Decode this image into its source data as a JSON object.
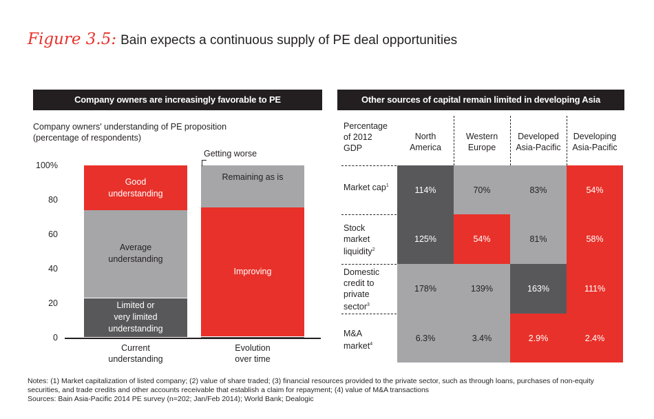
{
  "figure": {
    "label": "Figure 3.5:",
    "title": "Bain expects a continuous supply of PE deal opportunities"
  },
  "left_panel": {
    "banner": "Company owners are increasingly favorable to PE",
    "ytitle_line1": "Company owners' understanding of PE proposition",
    "ytitle_line2": "(percentage of respondents)",
    "annotation": "Getting worse"
  },
  "right_panel": {
    "banner": "Other sources of capital remain limited in developing Asia",
    "corner": [
      "Percentage",
      "of 2012",
      "GDP"
    ],
    "columns": [
      {
        "line1": "North",
        "line2": "America"
      },
      {
        "line1": "Western",
        "line2": "Europe"
      },
      {
        "line1": "Developed",
        "line2": "Asia-Pacific"
      },
      {
        "line1": "Developing",
        "line2": "Asia-Pacific"
      }
    ],
    "rows": [
      {
        "label": [
          "Market cap"
        ],
        "note": "1",
        "values": [
          "114%",
          "70%",
          "83%",
          "54%"
        ]
      },
      {
        "label": [
          "Stock",
          "market",
          "liquidity"
        ],
        "note": "2",
        "values": [
          "125%",
          "54%",
          "81%",
          "58%"
        ]
      },
      {
        "label": [
          "Domestic",
          "credit to",
          "private",
          "sector"
        ],
        "note": "3",
        "values": [
          "178%",
          "139%",
          "163%",
          "111%"
        ]
      },
      {
        "label": [
          "M&A",
          "market"
        ],
        "note": "4",
        "values": [
          "6.3%",
          "3.4%",
          "2.9%",
          "2.4%"
        ]
      }
    ],
    "colors": {
      "dark": "#58585a",
      "grey": "#a6a6a8",
      "red": "#e8312a"
    }
  },
  "chart_data": [
    {
      "type": "bar",
      "stacked": true,
      "title": "Company owners are increasingly favorable to PE",
      "ylabel": "Company owners' understanding of PE proposition (percentage of respondents)",
      "categories": [
        "Current understanding",
        "Evolution over time"
      ],
      "category_lines": [
        [
          "Current",
          "understanding"
        ],
        [
          "Evolution",
          "over time"
        ]
      ],
      "yticks": [
        "100%",
        "80",
        "60",
        "40",
        "20",
        "0"
      ],
      "ylim": [
        0,
        100
      ],
      "series": [
        {
          "name": "Limited or very limited understanding / Getting worse",
          "color": "#58585a",
          "values": [
            23,
            0.5
          ]
        },
        {
          "name": "Average understanding / Improving",
          "values": [
            51,
            75
          ],
          "colors": [
            "#a6a6a8",
            "#e8312a"
          ]
        },
        {
          "name": "Good understanding / Remaining as is",
          "values": [
            26,
            24.5
          ],
          "colors": [
            "#e8312a",
            "#a6a6a8"
          ]
        }
      ],
      "segment_labels": [
        [
          [
            "Limited or",
            "very limited",
            "understanding"
          ],
          [
            "Average",
            "understanding"
          ],
          [
            "Good",
            "understanding"
          ]
        ],
        [
          [],
          [
            "Improving"
          ],
          [
            "Remaining as is"
          ]
        ]
      ]
    },
    {
      "type": "table",
      "title": "Other sources of capital remain limited in developing Asia",
      "columns": [
        "North America",
        "Western Europe",
        "Developed Asia-Pacific",
        "Developing Asia-Pacific"
      ],
      "rows": [
        "Market cap",
        "Stock market liquidity",
        "Domestic credit to private sector",
        "M&A market"
      ],
      "values": [
        [
          114,
          70,
          83,
          54
        ],
        [
          125,
          54,
          81,
          58
        ],
        [
          178,
          139,
          163,
          111
        ],
        [
          6.3,
          3.4,
          2.9,
          2.4
        ]
      ],
      "unit": "% of 2012 GDP"
    }
  ],
  "cell_colors": [
    [
      "dark",
      "grey",
      "grey",
      "red"
    ],
    [
      "dark",
      "red",
      "grey",
      "red"
    ],
    [
      "grey",
      "grey",
      "dark",
      "red"
    ],
    [
      "grey",
      "grey",
      "red",
      "red"
    ]
  ],
  "notes": {
    "line1": "Notes: (1) Market capitalization of listed company; (2) value of share traded; (3) financial resources provided to the private sector, such as through loans, purchases of non-equity",
    "line2": "securities, and trade credits and other accounts receivable that establish a claim for repayment; (4) value of M&A transactions",
    "sources": "Sources: Bain Asia-Pacific 2014 PE survey (n=202; Jan/Feb 2014); World Bank; Dealogic"
  }
}
